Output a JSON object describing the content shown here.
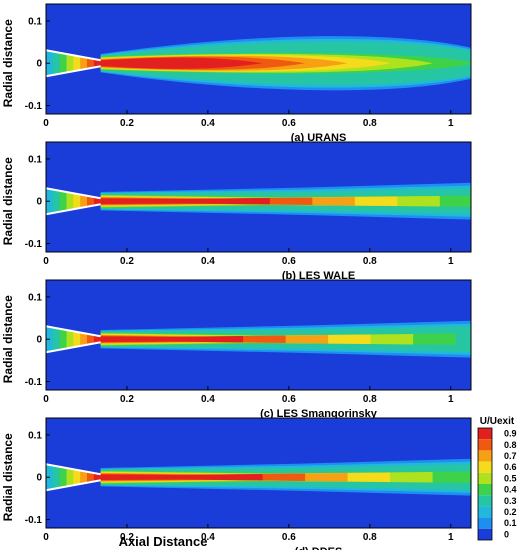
{
  "chart_data": {
    "type": "heatmap",
    "ylabel": "Radial distance",
    "xlabel": "Axial Distance",
    "xlim": [
      0,
      1.05
    ],
    "ylim": [
      -0.12,
      0.14
    ],
    "x_ticks": [
      "0",
      "0.2",
      "0.4",
      "0.6",
      "0.8",
      "1"
    ],
    "y_ticks": [
      "0.1",
      "0",
      "-0.1"
    ],
    "panels": [
      {
        "caption": "(a) URANS",
        "potential_core_end_x": 0.55,
        "spread": 1.0,
        "uniform": true
      },
      {
        "caption": "(b) LES WALE",
        "potential_core_end_x": 0.58,
        "spread": 0.55,
        "uniform": false
      },
      {
        "caption": "(c) LES Smangorinsky",
        "potential_core_end_x": 0.47,
        "spread": 0.55,
        "uniform": false
      },
      {
        "caption": "(d) DDES",
        "potential_core_end_x": 0.55,
        "spread": 0.55,
        "uniform": false
      }
    ],
    "colorbar": {
      "title": "U/Uexit",
      "levels": [
        "0.9",
        "0.8",
        "0.7",
        "0.6",
        "0.5",
        "0.4",
        "0.3",
        "0.2",
        "0.1",
        "0"
      ],
      "colors": [
        "#e32020",
        "#f05a10",
        "#f8a014",
        "#f4dc1c",
        "#aee21e",
        "#3ed24a",
        "#26c6a4",
        "#22b8dc",
        "#1c8ff0",
        "#1a3cd8"
      ]
    }
  }
}
